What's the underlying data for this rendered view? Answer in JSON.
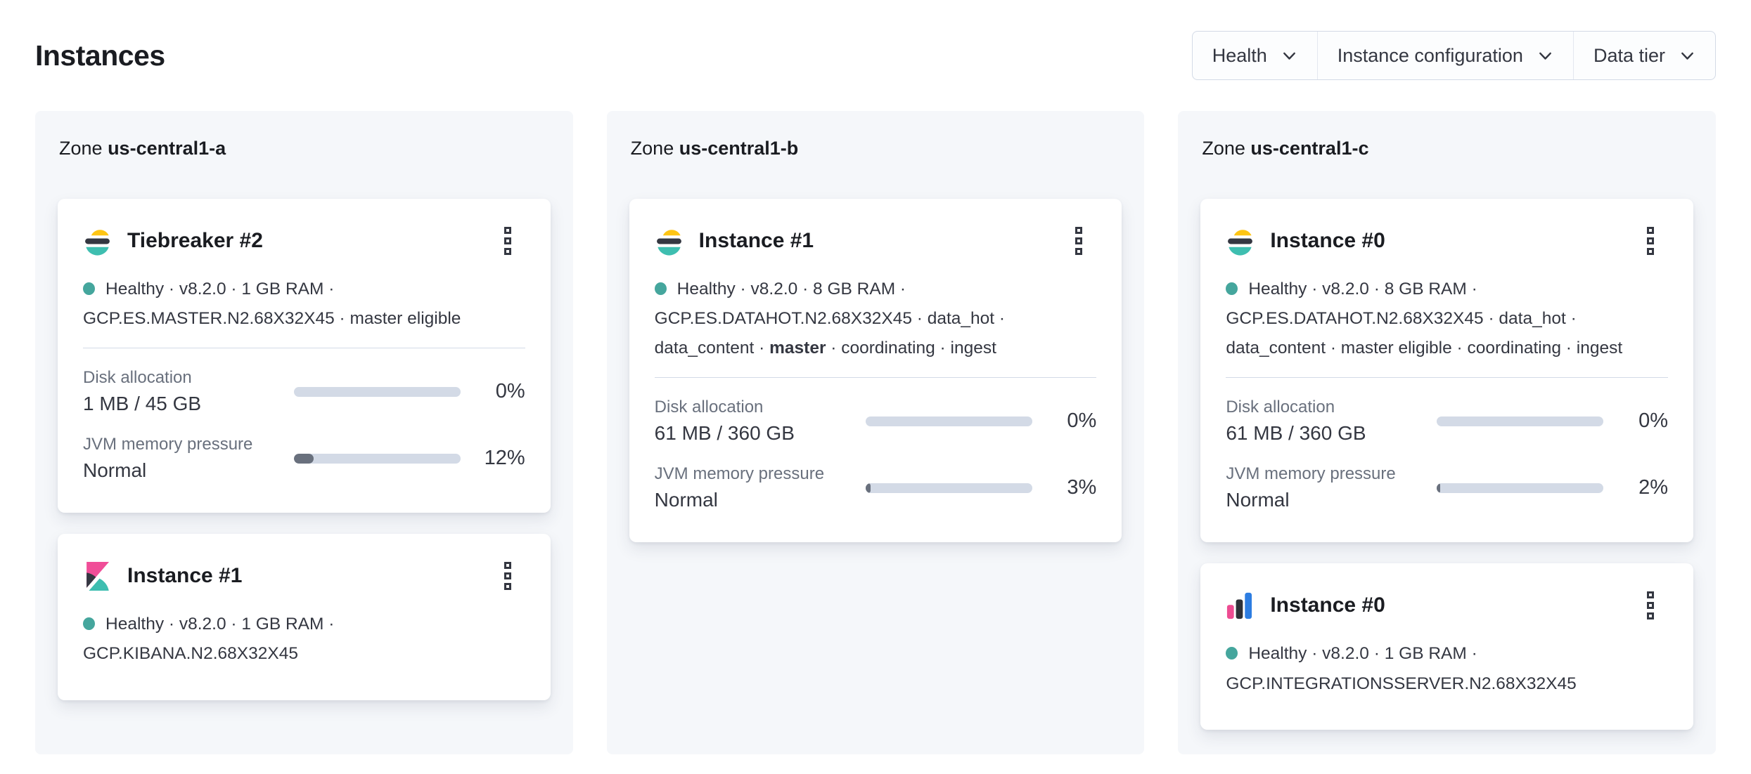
{
  "page": {
    "title": "Instances"
  },
  "filters": {
    "health": "Health",
    "instance_configuration": "Instance configuration",
    "data_tier": "Data tier"
  },
  "zone_prefix": "Zone",
  "zones": [
    {
      "name": "us-central1-a",
      "cards": [
        {
          "logo": "elasticsearch-logo",
          "title": "Tiebreaker #2",
          "status_pre": "Healthy · v8.2.0 · 1 GB RAM · GCP.ES.MASTER.N2.68X32X45 · master eligible",
          "status_bold": "",
          "status_post": "",
          "metrics": [
            {
              "label": "Disk allocation",
              "value": "1 MB / 45 GB",
              "percent": "0%",
              "fill": 0
            },
            {
              "label": "JVM memory pressure",
              "value": "Normal",
              "percent": "12%",
              "fill": 12
            }
          ]
        },
        {
          "logo": "kibana-logo",
          "title": "Instance #1",
          "status_pre": "Healthy · v8.2.0 · 1 GB RAM · GCP.KIBANA.N2.68X32X45",
          "status_bold": "",
          "status_post": ""
        }
      ]
    },
    {
      "name": "us-central1-b",
      "cards": [
        {
          "logo": "elasticsearch-logo",
          "title": "Instance #1",
          "status_pre": "Healthy · v8.2.0 · 8 GB RAM · GCP.ES.DATAHOT.N2.68X32X45 · data_hot · data_content · ",
          "status_bold": "master",
          "status_post": " · coordinating · ingest",
          "metrics": [
            {
              "label": "Disk allocation",
              "value": "61 MB / 360 GB",
              "percent": "0%",
              "fill": 0
            },
            {
              "label": "JVM memory pressure",
              "value": "Normal",
              "percent": "3%",
              "fill": 3
            }
          ]
        }
      ]
    },
    {
      "name": "us-central1-c",
      "cards": [
        {
          "logo": "elasticsearch-logo",
          "title": "Instance #0",
          "status_pre": "Healthy · v8.2.0 · 8 GB RAM · GCP.ES.DATAHOT.N2.68X32X45 · data_hot · data_content · master eligible · coordinating · ingest",
          "status_bold": "",
          "status_post": "",
          "metrics": [
            {
              "label": "Disk allocation",
              "value": "61 MB / 360 GB",
              "percent": "0%",
              "fill": 0
            },
            {
              "label": "JVM memory pressure",
              "value": "Normal",
              "percent": "2%",
              "fill": 2
            }
          ]
        },
        {
          "logo": "integrations-server-logo",
          "title": "Instance #0",
          "status_pre": "Healthy · v8.2.0 · 1 GB RAM · GCP.INTEGRATIONSSERVER.N2.68X32X45",
          "status_bold": "",
          "status_post": ""
        }
      ]
    }
  ],
  "icons": {
    "instance_menu": "boxes-vertical",
    "filter_dropdown": "chevron-down",
    "health_status": "filled-circle"
  },
  "colors": {
    "healthy_dot": "#45a69d",
    "bar_track": "#d3dae6",
    "bar_fill": "#69707d",
    "zone_panel_bg": "#f5f7fa",
    "es_yellow": "#fec514",
    "es_dark": "#343741",
    "es_teal": "#3ebeb0",
    "kibana_pink": "#f04e98",
    "integrations_blue": "#2d7de1",
    "title_text": "#1a1c21",
    "body_text": "#343741",
    "muted_text": "#69707d"
  }
}
